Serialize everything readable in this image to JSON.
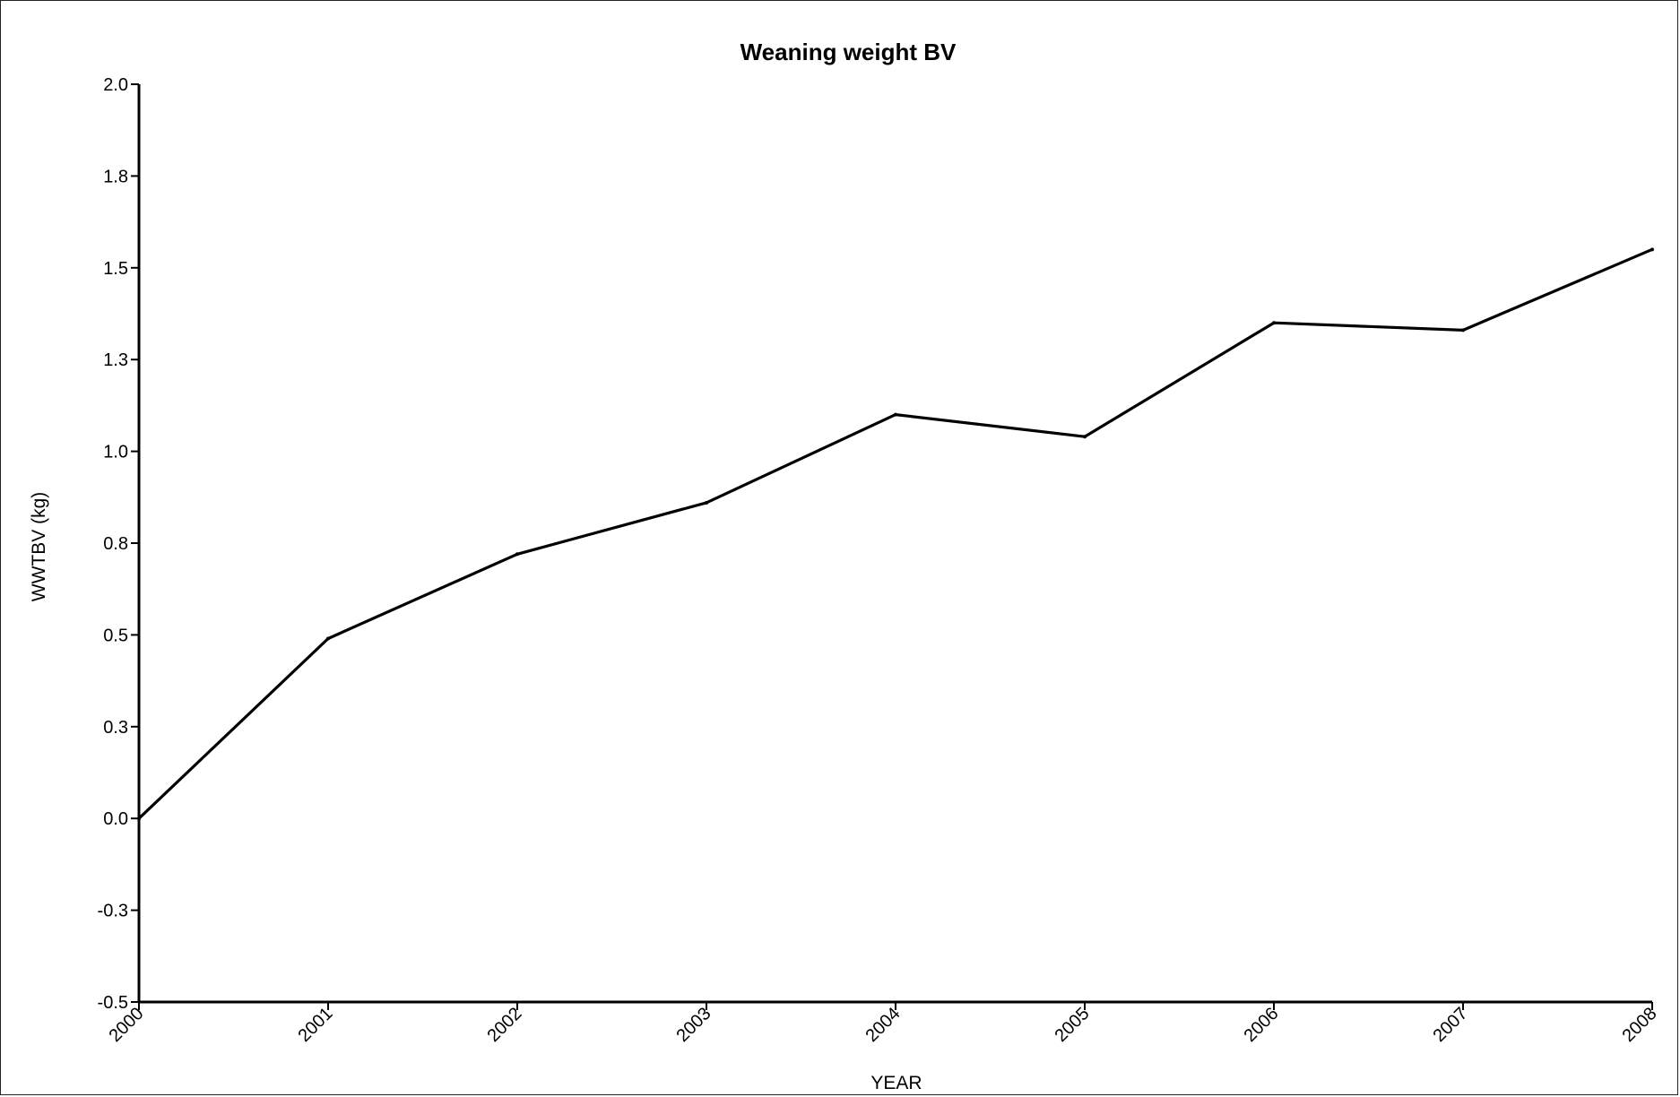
{
  "chart_data": {
    "type": "line",
    "title": "Weaning weight BV",
    "xlabel": "YEAR",
    "ylabel": "WWTBV (kg)",
    "x": [
      "2000",
      "2001",
      "2002",
      "2003",
      "2004",
      "2005",
      "2006",
      "2007",
      "2008"
    ],
    "series": [
      {
        "values": [
          0.0,
          0.49,
          0.72,
          0.86,
          1.1,
          1.04,
          1.35,
          1.33,
          1.55
        ]
      }
    ],
    "ylim": [
      -0.5,
      2.0
    ],
    "yticks": [
      -0.5,
      -0.25,
      0.0,
      0.25,
      0.5,
      0.75,
      1.0,
      1.25,
      1.5,
      1.75,
      2.0
    ],
    "ytick_labels": [
      "-0.5",
      "-0.3",
      "0.0",
      "0.3",
      "0.5",
      "0.8",
      "1.0",
      "1.3",
      "1.5",
      "1.8",
      "2.0"
    ],
    "grid": false,
    "line_color": "#000000"
  }
}
